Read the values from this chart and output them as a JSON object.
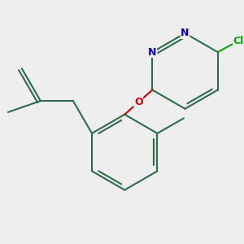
{
  "bg_color": "#eeeeee",
  "bond_color": "#2d6b4a",
  "bond_width": 1.5,
  "N_color": "#0000ee",
  "O_color": "#dd0000",
  "Cl_color": "#00aa00",
  "figsize": [
    3.0,
    3.0
  ],
  "dpi": 100,
  "xlim": [
    -3.2,
    3.2
  ],
  "ylim": [
    -3.2,
    3.2
  ]
}
